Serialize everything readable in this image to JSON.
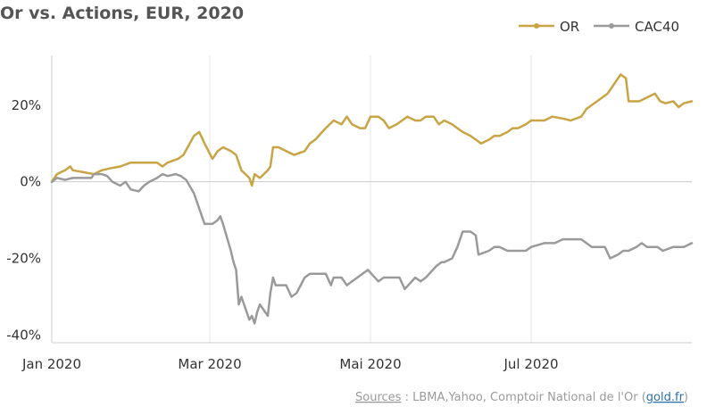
{
  "chart_data": {
    "type": "line",
    "title": "Or vs. Actions, EUR, 2020",
    "xlabel": "",
    "ylabel": "",
    "x_range": [
      "2020-01-01",
      "2020-08-31"
    ],
    "ylim": [
      -42,
      33
    ],
    "y_ticks": [
      {
        "value": 20,
        "label": "20%"
      },
      {
        "value": 0,
        "label": "0%"
      },
      {
        "value": -20,
        "label": "-20%"
      },
      {
        "value": -40,
        "label": "-40%"
      }
    ],
    "x_ticks": [
      {
        "date": "2020-01-01",
        "label": "Jan 2020"
      },
      {
        "date": "2020-03-01",
        "label": "Mar 2020"
      },
      {
        "date": "2020-05-01",
        "label": "Mai 2020"
      },
      {
        "date": "2020-07-01",
        "label": "Jul 2020"
      }
    ],
    "grid": "vertical",
    "legend_position": "top-right",
    "series": [
      {
        "name": "OR",
        "color": "#c9a444",
        "points": [
          [
            "2020-01-01",
            0
          ],
          [
            "2020-01-03",
            2
          ],
          [
            "2020-01-06",
            3
          ],
          [
            "2020-01-08",
            4
          ],
          [
            "2020-01-09",
            3
          ],
          [
            "2020-01-13",
            2.5
          ],
          [
            "2020-01-17",
            2
          ],
          [
            "2020-01-20",
            3
          ],
          [
            "2020-01-23",
            3.5
          ],
          [
            "2020-01-27",
            4
          ],
          [
            "2020-01-31",
            5
          ],
          [
            "2020-02-04",
            5
          ],
          [
            "2020-02-10",
            5
          ],
          [
            "2020-02-12",
            4
          ],
          [
            "2020-02-14",
            5
          ],
          [
            "2020-02-18",
            6
          ],
          [
            "2020-02-20",
            7
          ],
          [
            "2020-02-24",
            12
          ],
          [
            "2020-02-26",
            13
          ],
          [
            "2020-02-28",
            10
          ],
          [
            "2020-03-02",
            6
          ],
          [
            "2020-03-04",
            8
          ],
          [
            "2020-03-06",
            9
          ],
          [
            "2020-03-09",
            8
          ],
          [
            "2020-03-11",
            7
          ],
          [
            "2020-03-13",
            3
          ],
          [
            "2020-03-16",
            1
          ],
          [
            "2020-03-17",
            -1
          ],
          [
            "2020-03-18",
            2
          ],
          [
            "2020-03-20",
            1
          ],
          [
            "2020-03-23",
            3
          ],
          [
            "2020-03-24",
            4
          ],
          [
            "2020-03-25",
            9
          ],
          [
            "2020-03-27",
            9
          ],
          [
            "2020-03-30",
            8
          ],
          [
            "2020-04-02",
            7
          ],
          [
            "2020-04-06",
            8
          ],
          [
            "2020-04-08",
            10
          ],
          [
            "2020-04-10",
            11
          ],
          [
            "2020-04-14",
            14
          ],
          [
            "2020-04-17",
            16
          ],
          [
            "2020-04-20",
            15
          ],
          [
            "2020-04-22",
            17
          ],
          [
            "2020-04-24",
            15
          ],
          [
            "2020-04-27",
            14
          ],
          [
            "2020-04-29",
            14
          ],
          [
            "2020-05-01",
            17
          ],
          [
            "2020-05-04",
            17
          ],
          [
            "2020-05-06",
            16
          ],
          [
            "2020-05-08",
            14
          ],
          [
            "2020-05-11",
            15
          ],
          [
            "2020-05-13",
            16
          ],
          [
            "2020-05-15",
            17
          ],
          [
            "2020-05-18",
            16
          ],
          [
            "2020-05-20",
            16
          ],
          [
            "2020-05-22",
            17
          ],
          [
            "2020-05-25",
            17
          ],
          [
            "2020-05-27",
            15
          ],
          [
            "2020-05-29",
            16
          ],
          [
            "2020-06-01",
            15
          ],
          [
            "2020-06-03",
            14
          ],
          [
            "2020-06-05",
            13
          ],
          [
            "2020-06-08",
            12
          ],
          [
            "2020-06-10",
            11
          ],
          [
            "2020-06-12",
            10
          ],
          [
            "2020-06-15",
            11
          ],
          [
            "2020-06-17",
            12
          ],
          [
            "2020-06-19",
            12
          ],
          [
            "2020-06-22",
            13
          ],
          [
            "2020-06-24",
            14
          ],
          [
            "2020-06-26",
            14
          ],
          [
            "2020-06-29",
            15
          ],
          [
            "2020-07-01",
            16
          ],
          [
            "2020-07-06",
            16
          ],
          [
            "2020-07-09",
            17
          ],
          [
            "2020-07-13",
            16.5
          ],
          [
            "2020-07-16",
            16
          ],
          [
            "2020-07-20",
            17
          ],
          [
            "2020-07-22",
            19
          ],
          [
            "2020-07-24",
            20
          ],
          [
            "2020-07-28",
            22
          ],
          [
            "2020-07-30",
            23
          ],
          [
            "2020-08-04",
            28
          ],
          [
            "2020-08-06",
            27
          ],
          [
            "2020-08-07",
            21
          ],
          [
            "2020-08-11",
            21
          ],
          [
            "2020-08-14",
            22
          ],
          [
            "2020-08-17",
            23
          ],
          [
            "2020-08-19",
            21
          ],
          [
            "2020-08-21",
            20.5
          ],
          [
            "2020-08-24",
            21
          ],
          [
            "2020-08-26",
            19.5
          ],
          [
            "2020-08-28",
            20.5
          ],
          [
            "2020-08-31",
            21
          ]
        ]
      },
      {
        "name": "CAC40",
        "color": "#9a9a9a",
        "points": [
          [
            "2020-01-01",
            0
          ],
          [
            "2020-01-03",
            1
          ],
          [
            "2020-01-06",
            0.5
          ],
          [
            "2020-01-09",
            1
          ],
          [
            "2020-01-13",
            1
          ],
          [
            "2020-01-16",
            1
          ],
          [
            "2020-01-17",
            2
          ],
          [
            "2020-01-20",
            2
          ],
          [
            "2020-01-22",
            1.5
          ],
          [
            "2020-01-24",
            0
          ],
          [
            "2020-01-27",
            -1
          ],
          [
            "2020-01-29",
            0
          ],
          [
            "2020-01-31",
            -2
          ],
          [
            "2020-02-03",
            -2.5
          ],
          [
            "2020-02-05",
            -1
          ],
          [
            "2020-02-07",
            0
          ],
          [
            "2020-02-10",
            1
          ],
          [
            "2020-02-12",
            2
          ],
          [
            "2020-02-14",
            1.5
          ],
          [
            "2020-02-17",
            2
          ],
          [
            "2020-02-19",
            1.5
          ],
          [
            "2020-02-21",
            0.5
          ],
          [
            "2020-02-24",
            -3
          ],
          [
            "2020-02-26",
            -7
          ],
          [
            "2020-02-28",
            -11
          ],
          [
            "2020-03-02",
            -11
          ],
          [
            "2020-03-04",
            -10
          ],
          [
            "2020-03-05",
            -9
          ],
          [
            "2020-03-06",
            -11
          ],
          [
            "2020-03-09",
            -18
          ],
          [
            "2020-03-10",
            -21
          ],
          [
            "2020-03-11",
            -23
          ],
          [
            "2020-03-12",
            -32
          ],
          [
            "2020-03-13",
            -30
          ],
          [
            "2020-03-16",
            -36
          ],
          [
            "2020-03-17",
            -35
          ],
          [
            "2020-03-18",
            -37
          ],
          [
            "2020-03-19",
            -34
          ],
          [
            "2020-03-20",
            -32
          ],
          [
            "2020-03-23",
            -35
          ],
          [
            "2020-03-24",
            -29
          ],
          [
            "2020-03-25",
            -25
          ],
          [
            "2020-03-26",
            -27
          ],
          [
            "2020-03-30",
            -27
          ],
          [
            "2020-04-01",
            -30
          ],
          [
            "2020-04-03",
            -29
          ],
          [
            "2020-04-06",
            -25
          ],
          [
            "2020-04-08",
            -24
          ],
          [
            "2020-04-10",
            -24
          ],
          [
            "2020-04-14",
            -24
          ],
          [
            "2020-04-16",
            -27
          ],
          [
            "2020-04-17",
            -25
          ],
          [
            "2020-04-20",
            -25
          ],
          [
            "2020-04-22",
            -27
          ],
          [
            "2020-04-24",
            -26
          ],
          [
            "2020-04-28",
            -24
          ],
          [
            "2020-04-30",
            -23
          ],
          [
            "2020-05-04",
            -26
          ],
          [
            "2020-05-06",
            -25
          ],
          [
            "2020-05-08",
            -25
          ],
          [
            "2020-05-12",
            -25
          ],
          [
            "2020-05-14",
            -28
          ],
          [
            "2020-05-18",
            -25
          ],
          [
            "2020-05-20",
            -26
          ],
          [
            "2020-05-22",
            -25
          ],
          [
            "2020-05-26",
            -22
          ],
          [
            "2020-05-28",
            -21
          ],
          [
            "2020-05-29",
            -21
          ],
          [
            "2020-06-01",
            -20
          ],
          [
            "2020-06-03",
            -17
          ],
          [
            "2020-06-05",
            -13
          ],
          [
            "2020-06-08",
            -13
          ],
          [
            "2020-06-10",
            -14
          ],
          [
            "2020-06-11",
            -19
          ],
          [
            "2020-06-15",
            -18
          ],
          [
            "2020-06-17",
            -17
          ],
          [
            "2020-06-19",
            -17
          ],
          [
            "2020-06-22",
            -18
          ],
          [
            "2020-06-24",
            -18
          ],
          [
            "2020-06-26",
            -18
          ],
          [
            "2020-06-29",
            -18
          ],
          [
            "2020-07-01",
            -17
          ],
          [
            "2020-07-06",
            -16
          ],
          [
            "2020-07-08",
            -16
          ],
          [
            "2020-07-10",
            -16
          ],
          [
            "2020-07-13",
            -15
          ],
          [
            "2020-07-15",
            -15
          ],
          [
            "2020-07-17",
            -15
          ],
          [
            "2020-07-20",
            -15
          ],
          [
            "2020-07-22",
            -16
          ],
          [
            "2020-07-24",
            -17
          ],
          [
            "2020-07-27",
            -17
          ],
          [
            "2020-07-29",
            -17
          ],
          [
            "2020-07-31",
            -20
          ],
          [
            "2020-08-03",
            -19
          ],
          [
            "2020-08-05",
            -18
          ],
          [
            "2020-08-07",
            -18
          ],
          [
            "2020-08-10",
            -17
          ],
          [
            "2020-08-12",
            -16
          ],
          [
            "2020-08-14",
            -17
          ],
          [
            "2020-08-18",
            -17
          ],
          [
            "2020-08-20",
            -18
          ],
          [
            "2020-08-24",
            -17
          ],
          [
            "2020-08-26",
            -17
          ],
          [
            "2020-08-28",
            -17
          ],
          [
            "2020-08-31",
            -16
          ]
        ]
      }
    ]
  },
  "source": {
    "label": "Sources",
    "text": " : LBMA,Yahoo, Comptoir National de l'Or (",
    "link": "gold.fr",
    "close": ")"
  }
}
